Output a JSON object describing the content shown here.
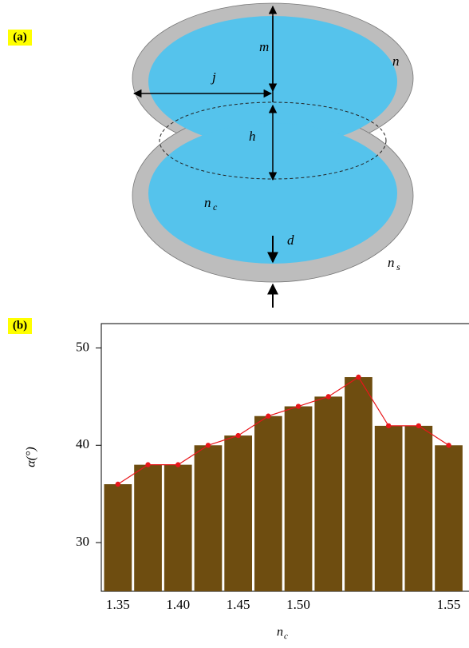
{
  "panel_a_label": "(a)",
  "diagram": {
    "m": "m",
    "n": "n",
    "j": "j",
    "h": "h",
    "nc_main": "n",
    "nc_sub": "c",
    "d": "d",
    "ns_main": "n",
    "ns_sub": "s"
  },
  "panel_b_label": "(b)",
  "chart_data": {
    "type": "bar",
    "ylabel": "α(°)",
    "xlabel_main": "n",
    "xlabel_sub": "c",
    "categories": [
      "1.35",
      null,
      "1.40",
      null,
      "1.45",
      null,
      "1.50",
      null,
      null,
      null,
      null,
      "1.55"
    ],
    "values": [
      36,
      38,
      38,
      40,
      41,
      43,
      44,
      45,
      47,
      42,
      42,
      40
    ],
    "color": "#6e4d10",
    "line_color": "#e8161a",
    "ylim": [
      25,
      52.5
    ],
    "yticks": [
      30,
      40,
      50
    ]
  }
}
